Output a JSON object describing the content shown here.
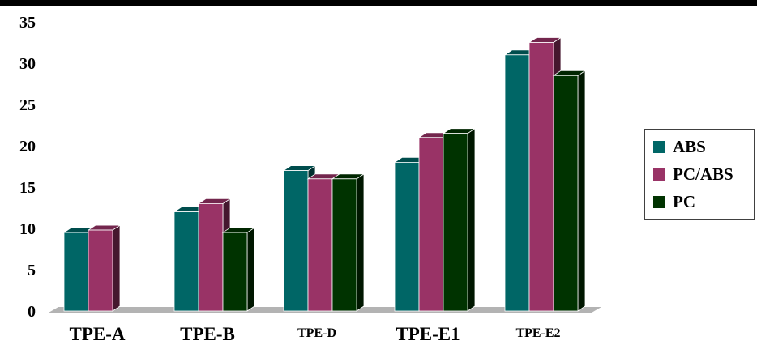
{
  "chart_data": {
    "type": "bar",
    "title": "",
    "xlabel": "",
    "ylabel": "",
    "ylim": [
      0,
      35
    ],
    "yticks": [
      0,
      5,
      10,
      15,
      20,
      25,
      30,
      35
    ],
    "categories": [
      "TPE-A",
      "TPE-B",
      "TPE-D",
      "TPE-E1",
      "TPE-E2"
    ],
    "series": [
      {
        "name": "ABS",
        "color": "#006666",
        "values": [
          9.5,
          12,
          17,
          18,
          31
        ]
      },
      {
        "name": "PC/ABS",
        "color": "#993366",
        "values": [
          9.8,
          13,
          16,
          21,
          32.5
        ]
      },
      {
        "name": "PC",
        "color": "#003300",
        "values": [
          null,
          9.5,
          16,
          21.5,
          28.5
        ]
      }
    ],
    "legend": "right",
    "grid": false,
    "style": "3d-bars"
  }
}
